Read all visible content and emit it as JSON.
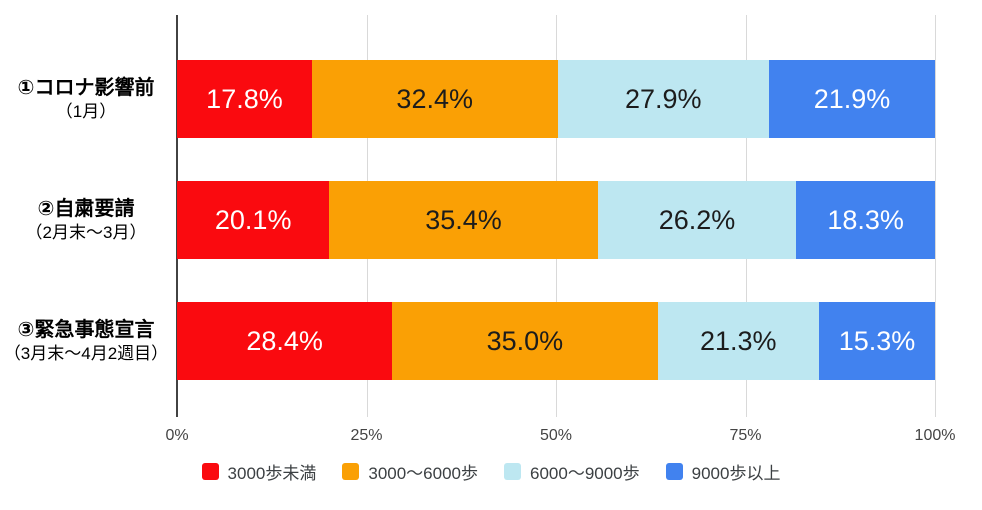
{
  "chart_data": {
    "type": "bar",
    "orientation": "horizontal",
    "stacked": true,
    "title": "",
    "xlabel": "",
    "ylabel": "",
    "xlim": [
      0,
      100
    ],
    "grid": true,
    "legend_position": "bottom",
    "value_suffix": "%",
    "categories": [
      {
        "label": "①コロナ影響前",
        "sublabel": "（1月）"
      },
      {
        "label": "②自粛要請",
        "sublabel": "（2月末〜3月）"
      },
      {
        "label": "③緊急事態宣言",
        "sublabel": "（3月末〜4月2週目）"
      }
    ],
    "series": [
      {
        "name": "3000歩未満",
        "color": "#fa0a0f",
        "label_color": "#ffffff",
        "values": [
          17.8,
          20.1,
          28.4
        ]
      },
      {
        "name": "3000〜6000歩",
        "color": "#faa005",
        "label_color": "#1c1c1c",
        "values": [
          32.4,
          35.4,
          35.0
        ]
      },
      {
        "name": "6000〜9000歩",
        "color": "#bde7f1",
        "label_color": "#1c1c1c",
        "values": [
          27.9,
          26.2,
          21.3
        ]
      },
      {
        "name": "9000歩以上",
        "color": "#4182ef",
        "label_color": "#ffffff",
        "values": [
          21.9,
          18.3,
          15.3
        ]
      }
    ],
    "x_ticks": [
      "0%",
      "25%",
      "50%",
      "75%",
      "100%"
    ],
    "x_tick_values": [
      0,
      25,
      50,
      75,
      100
    ]
  },
  "colors": {
    "gridline": "#d9d9d9",
    "axis_line": "#424242",
    "background": "#ffffff"
  }
}
